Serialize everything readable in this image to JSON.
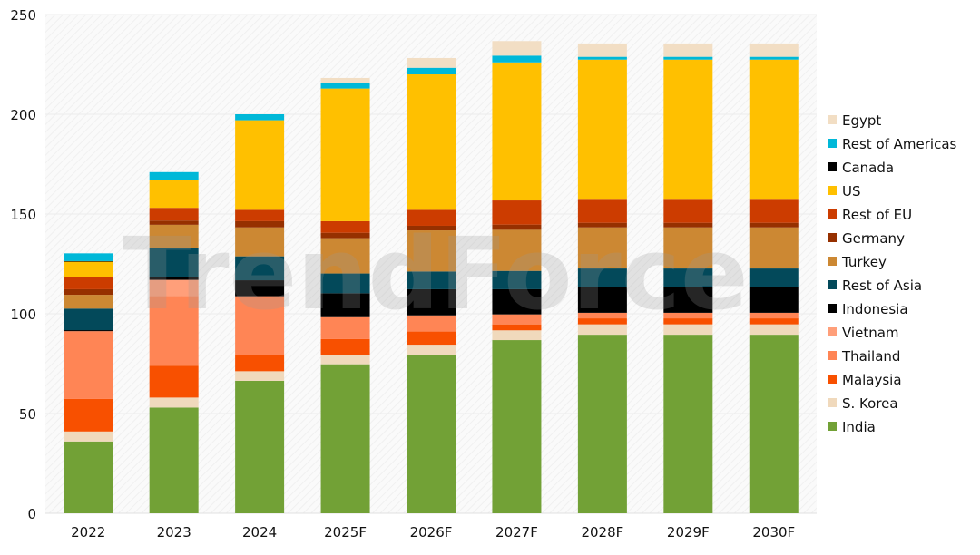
{
  "chart_data": {
    "type": "bar",
    "stacked": true,
    "title": "",
    "xlabel": "",
    "ylabel": "",
    "ylim": [
      0,
      250
    ],
    "yticks": [
      0,
      50,
      100,
      150,
      200,
      250
    ],
    "grid": true,
    "legend_placement": "right",
    "watermark": "TrendForce",
    "categories": [
      "2022",
      "2023",
      "2024",
      "2025F",
      "2026F",
      "2027F",
      "2028F",
      "2029F",
      "2030F"
    ],
    "series": [
      {
        "name": "India",
        "color": "#72A136",
        "values": [
          36,
          53,
          66.4,
          74.7,
          79.5,
          86.8,
          89.5,
          89.5,
          89.5
        ]
      },
      {
        "name": "S. Korea",
        "color": "#F0D9BC",
        "values": [
          5,
          5,
          4.8,
          4.8,
          5,
          4.9,
          5.2,
          5.2,
          5.2
        ]
      },
      {
        "name": "Malaysia",
        "color": "#F85000",
        "values": [
          16.3,
          16,
          8,
          7.8,
          6.6,
          3,
          3,
          3,
          3
        ]
      },
      {
        "name": "Thailand",
        "color": "#FF8555",
        "values": [
          34,
          35,
          29.6,
          11,
          8.1,
          5,
          2.8,
          2.8,
          2.8
        ]
      },
      {
        "name": "Vietnam",
        "color": "#FF9F7A",
        "values": [
          0,
          8,
          0,
          0,
          0,
          0,
          0,
          0,
          0
        ]
      },
      {
        "name": "Indonesia",
        "color": "#000000",
        "values": [
          0.5,
          1.5,
          8,
          12,
          13.1,
          12.6,
          12.8,
          12.8,
          12.8
        ]
      },
      {
        "name": "Rest of Asia",
        "color": "#03495A",
        "values": [
          10.8,
          14.3,
          12,
          9.9,
          8.9,
          9.2,
          9.4,
          9.4,
          9.4
        ]
      },
      {
        "name": "Turkey",
        "color": "#CC8833",
        "values": [
          6.9,
          11.8,
          14.5,
          17.7,
          20.6,
          20.6,
          20.6,
          20.6,
          20.6
        ]
      },
      {
        "name": "Germany",
        "color": "#963000",
        "values": [
          2.8,
          2.1,
          3.1,
          2.7,
          2.3,
          2.6,
          2.3,
          2.3,
          2.3
        ]
      },
      {
        "name": "Rest of EU",
        "color": "#CC3C00",
        "values": [
          6,
          6.4,
          5.7,
          5.8,
          8,
          12.1,
          12,
          12,
          12
        ]
      },
      {
        "name": "US",
        "color": "#FFC000",
        "values": [
          7.8,
          13.8,
          44.9,
          66.5,
          67.9,
          69.2,
          69.8,
          69.8,
          69.8
        ]
      },
      {
        "name": "Canada",
        "color": "#000000",
        "values": [
          0.3,
          0,
          0,
          0,
          0,
          0,
          0,
          0,
          0
        ]
      },
      {
        "name": "Rest of Americas",
        "color": "#00B8D8",
        "values": [
          3.9,
          4.1,
          3,
          3,
          3.3,
          3.4,
          1.4,
          1.4,
          1.4
        ]
      },
      {
        "name": "Egypt",
        "color": "#F2DEC4",
        "values": [
          0,
          0,
          0,
          2.3,
          4.9,
          7.3,
          6.7,
          6.7,
          6.7
        ]
      }
    ]
  }
}
